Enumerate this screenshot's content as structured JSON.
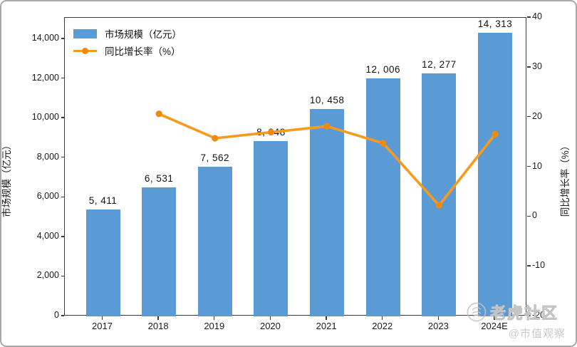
{
  "chart_data": {
    "type": "bar+line",
    "categories": [
      "2017",
      "2018",
      "2019",
      "2020",
      "2021",
      "2022",
      "2023",
      "2024E"
    ],
    "series": [
      {
        "name": "市场规模（亿元）",
        "type": "bar",
        "axis": "left",
        "values": [
          5411,
          6531,
          7562,
          8848,
          10458,
          12006,
          12277,
          14313
        ],
        "labels": [
          "5, 411",
          "6, 531",
          "7, 562",
          "8, 848",
          "10, 458",
          "12, 006",
          "12, 277",
          "14, 313"
        ],
        "color": "#5B9BD5"
      },
      {
        "name": "同比增长率（%）",
        "type": "line",
        "axis": "right",
        "values": [
          null,
          20.7,
          15.8,
          17.0,
          18.2,
          14.8,
          2.3,
          16.6
        ],
        "color": "#F79A1E"
      }
    ],
    "left_axis": {
      "title": "市场规模（亿元）",
      "tick_values": [
        0,
        2000,
        4000,
        6000,
        8000,
        10000,
        12000,
        14000
      ],
      "tick_labels": [
        "0",
        "2,000",
        "4,000",
        "6,000",
        "8,000",
        "10,000",
        "12,000",
        "14,000"
      ],
      "range": [
        0,
        15080
      ]
    },
    "right_axis": {
      "title": "同比增长率（%）",
      "tick_values": [
        -20,
        -10,
        0,
        10,
        20,
        30,
        40
      ],
      "tick_labels": [
        "-20",
        "-10",
        "0",
        "10",
        "20",
        "30",
        "40"
      ],
      "range": [
        -20,
        40
      ]
    },
    "legend_position": "upper-left",
    "grid": false
  },
  "legend": {
    "items": [
      {
        "label": "市场规模（亿元）",
        "marker": "bar-swatch"
      },
      {
        "label": "同比增长率（%）",
        "marker": "line-with-dot"
      }
    ]
  },
  "watermark": {
    "community": "老虎社区",
    "account": "@市值观察",
    "logo": "tiger-circle-logo"
  },
  "colors": {
    "bar": "#5B9BD5",
    "line": "#F79A1E",
    "line_marker": "#F08A0E",
    "spine": "#3A3A3A",
    "text": "#1A1A1A",
    "watermark": "#C4C4C4",
    "figure_border": "#A9A9A9"
  }
}
